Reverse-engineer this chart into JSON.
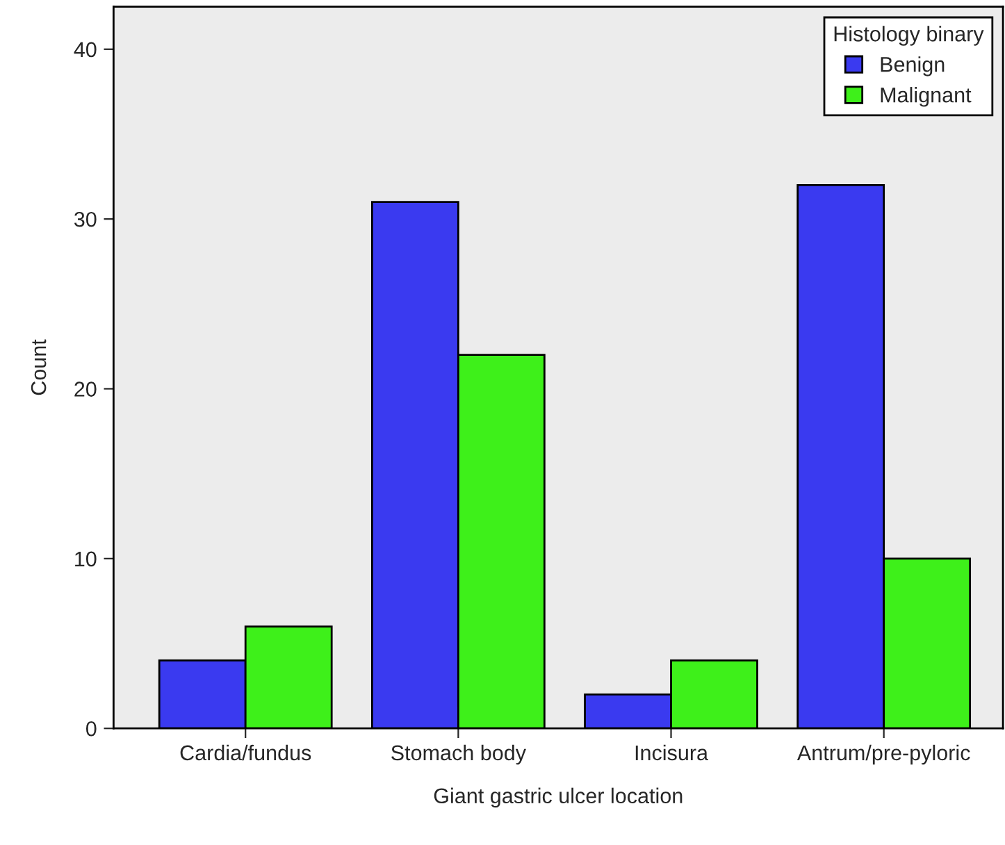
{
  "chart_data": {
    "type": "bar",
    "xlabel": "Giant gastric ulcer location",
    "ylabel": "Count",
    "categories": [
      "Cardia/fundus",
      "Stomach body",
      "Incisura",
      "Antrum/pre-pyloric"
    ],
    "series": [
      {
        "name": "Benign",
        "color": "#3a3af0",
        "values": [
          4,
          31,
          2,
          32
        ]
      },
      {
        "name": "Malignant",
        "color": "#3ef01a",
        "values": [
          6,
          22,
          4,
          10
        ]
      }
    ],
    "legend_title": "Histology binary",
    "legend": "top right",
    "ylim": [
      0,
      42.5
    ],
    "yticks": [
      0,
      10,
      20,
      30,
      40
    ],
    "grid": false
  }
}
